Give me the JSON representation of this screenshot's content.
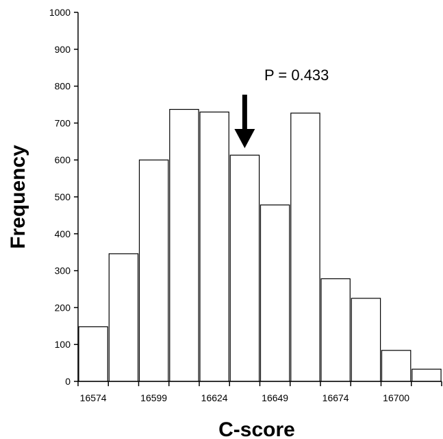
{
  "chart_data": {
    "type": "bar",
    "title": "",
    "xlabel": "C-score",
    "ylabel": "Frequency",
    "ylim": [
      0,
      1000
    ],
    "yticks": [
      0,
      100,
      200,
      300,
      400,
      500,
      600,
      700,
      800,
      900,
      1000
    ],
    "xtick_labels": [
      "16574",
      "16599",
      "16624",
      "16649",
      "16674",
      "16700"
    ],
    "bin_count": 12,
    "values": [
      148,
      346,
      600,
      737,
      730,
      613,
      478,
      727,
      278,
      225,
      84,
      33
    ],
    "annotation": {
      "text": "P = 0.433",
      "arrow_bin_position": 5.5
    },
    "grid": false,
    "legend": "none",
    "colors": {
      "bar_fill": "#ffffff",
      "bar_stroke": "#000000",
      "arrow": "#000000"
    }
  }
}
